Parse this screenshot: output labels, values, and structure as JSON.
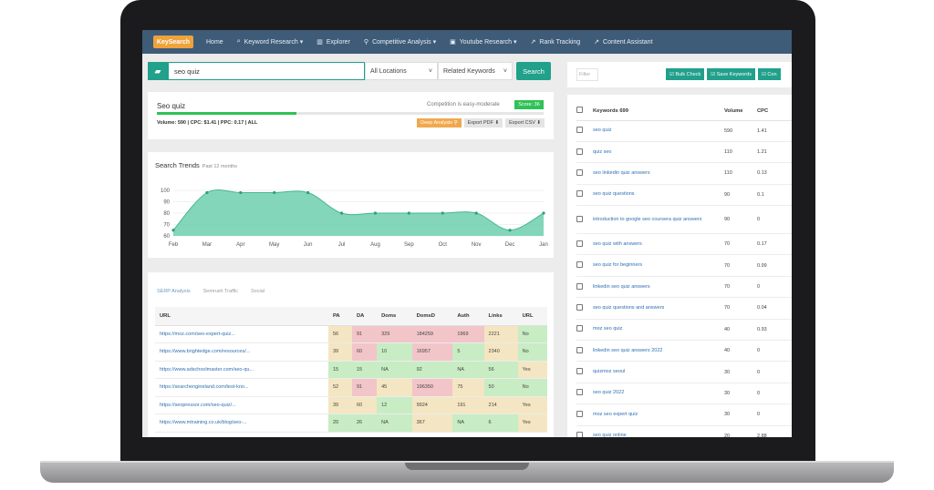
{
  "nav": {
    "logo": "KeySearch",
    "items": [
      {
        "icon": "home-icon",
        "glyph": "",
        "label": "Home"
      },
      {
        "icon": "search-icon",
        "glyph": "⌕",
        "label": "Keyword Research ▾"
      },
      {
        "icon": "bar-chart-icon",
        "glyph": "▥",
        "label": "Explorer"
      },
      {
        "icon": "link-icon",
        "glyph": "⚲",
        "label": "Competitive Analysis ▾"
      },
      {
        "icon": "video-icon",
        "glyph": "▣",
        "label": "Youtube Research ▾"
      },
      {
        "icon": "line-chart-icon",
        "glyph": "↗",
        "label": "Rank Tracking"
      },
      {
        "icon": "line-chart-icon",
        "glyph": "↗",
        "label": "Content Assistant"
      }
    ]
  },
  "search": {
    "value": "seo quiz",
    "location": "All Locations",
    "mode": "Related Keywords",
    "button": "Search"
  },
  "summary": {
    "title": "Seo quiz",
    "competition": "Competition is easy-moderate",
    "score": "Score: 36",
    "score_fraction": 0.36,
    "meta": "Volume: 590 | CPC: $1.41 | PPC: 0.17 | ALL",
    "buttons": [
      "Deep Analysis ⚲",
      "Export PDF ⬇",
      "Export CSV ⬇"
    ]
  },
  "trends": {
    "title": "Search Trends",
    "subtitle": "Past 12 months"
  },
  "chart_data": {
    "type": "area",
    "title": "Search Trends",
    "subtitle": "Past 12 months",
    "categories": [
      "Feb",
      "Mar",
      "Apr",
      "May",
      "Jun",
      "Jul",
      "Aug",
      "Sep",
      "Oct",
      "Nov",
      "Dec",
      "Jan"
    ],
    "values": [
      65,
      98,
      98,
      98,
      98,
      80,
      80,
      80,
      80,
      80,
      65,
      80
    ],
    "yticks": [
      60,
      70,
      80,
      90,
      100
    ],
    "ylim": [
      60,
      100
    ],
    "grid": true,
    "color": "#6fcfae"
  },
  "serp": {
    "tabs": [
      "SERP Analysis",
      "Semrush Traffic",
      "Social"
    ],
    "columns": [
      "URL",
      "PA",
      "DA",
      "Doms",
      "DomsD",
      "Auth",
      "Links",
      "URL"
    ],
    "rows": [
      {
        "url": "https://moz.com/seo-expert-quiz...",
        "pa": "56",
        "da": "91",
        "doms": "329",
        "domsd": "184259",
        "auth": "1969",
        "links": "2221",
        "u": "No",
        "c": [
          "y",
          "r",
          "r",
          "r",
          "r",
          "y",
          "g"
        ]
      },
      {
        "url": "https://www.brightedge.com/resources/...",
        "pa": "39",
        "da": "60",
        "doms": "10",
        "domsd": "16957",
        "auth": "5",
        "links": "2340",
        "u": "No",
        "c": [
          "y",
          "r",
          "g",
          "r",
          "g",
          "y",
          "g"
        ]
      },
      {
        "url": "https://www.adschoolmaster.com/seo-qu...",
        "pa": "15",
        "da": "15",
        "doms": "NA",
        "domsd": "92",
        "auth": "NA",
        "links": "56",
        "u": "Yes",
        "c": [
          "g",
          "g",
          "g",
          "g",
          "g",
          "g",
          "y"
        ]
      },
      {
        "url": "https://searchengineland.com/test-kno...",
        "pa": "52",
        "da": "91",
        "doms": "45",
        "domsd": "196350",
        "auth": "75",
        "links": "50",
        "u": "No",
        "c": [
          "y",
          "r",
          "y",
          "r",
          "y",
          "g",
          "g"
        ]
      },
      {
        "url": "https://seopressor.com/seo-quiz/...",
        "pa": "39",
        "da": "60",
        "doms": "12",
        "domsd": "9924",
        "auth": "191",
        "links": "214",
        "u": "Yes",
        "c": [
          "y",
          "y",
          "g",
          "y",
          "y",
          "y",
          "y"
        ]
      },
      {
        "url": "https://www.mtraining.co.uk/blog/seo-...",
        "pa": "20",
        "da": "26",
        "doms": "NA",
        "domsd": "367",
        "auth": "NA",
        "links": "6",
        "u": "Yes",
        "c": [
          "g",
          "g",
          "g",
          "y",
          "g",
          "g",
          "y"
        ]
      }
    ]
  },
  "right": {
    "filter_placeholder": "Filter",
    "buttons": [
      "☑ Bulk Check",
      "☑ Save Keywords",
      "☑ Con"
    ],
    "columns": [
      "Keywords 699",
      "Volume",
      "CPC"
    ],
    "rows": [
      {
        "kw": "seo quiz",
        "vol": "590",
        "cpc": "1.41"
      },
      {
        "kw": "quiz seo",
        "vol": "110",
        "cpc": "1.21"
      },
      {
        "kw": "seo linkedin quiz answers",
        "vol": "110",
        "cpc": "0.13"
      },
      {
        "kw": "seo quiz questions",
        "vol": "90",
        "cpc": "0.1"
      },
      {
        "kw": "introduction to google seo coursera quiz answers",
        "vol": "90",
        "cpc": "0"
      },
      {
        "kw": "seo quiz with answers",
        "vol": "70",
        "cpc": "0.17"
      },
      {
        "kw": "seo quiz for beginners",
        "vol": "70",
        "cpc": "0.99"
      },
      {
        "kw": "linkedin seo quiz answers",
        "vol": "70",
        "cpc": "0"
      },
      {
        "kw": "seo quiz questions and answers",
        "vol": "70",
        "cpc": "0.04"
      },
      {
        "kw": "moz seo quiz",
        "vol": "40",
        "cpc": "0.93"
      },
      {
        "kw": "linkedin seo quiz answers 2022",
        "vol": "40",
        "cpc": "0"
      },
      {
        "kw": "quizmoz seoul",
        "vol": "30",
        "cpc": "0"
      },
      {
        "kw": "seo quiz 2022",
        "vol": "30",
        "cpc": "0"
      },
      {
        "kw": "moz seo expert quiz",
        "vol": "30",
        "cpc": "0"
      },
      {
        "kw": "seo quiz online",
        "vol": "20",
        "cpc": "2.88"
      }
    ]
  }
}
